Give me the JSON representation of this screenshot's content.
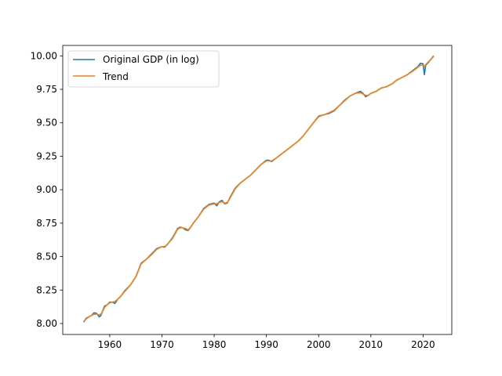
{
  "chart_data": {
    "type": "line",
    "title": "",
    "xlabel": "",
    "ylabel": "",
    "xlim": [
      1951,
      2025.5
    ],
    "ylim": [
      7.918,
      10.078
    ],
    "xticks": [
      1960,
      1970,
      1980,
      1990,
      2000,
      2010,
      2020
    ],
    "yticks": [
      8.0,
      8.25,
      8.5,
      8.75,
      9.0,
      9.25,
      9.5,
      9.75,
      10.0
    ],
    "xtick_labels": [
      "1960",
      "1970",
      "1980",
      "1990",
      "2000",
      "2010",
      "2020"
    ],
    "ytick_labels": [
      "8.00",
      "8.25",
      "8.50",
      "8.75",
      "9.00",
      "9.25",
      "9.50",
      "9.75",
      "10.00"
    ],
    "grid": false,
    "legend_position": "upper-left",
    "series": [
      {
        "name": "Original GDP (in log)",
        "color": "#1f77b4",
        "x": [
          1955.0,
          1955.5,
          1956.0,
          1956.5,
          1957.0,
          1957.5,
          1958.0,
          1958.3,
          1958.7,
          1959.0,
          1959.5,
          1960.0,
          1960.5,
          1961.0,
          1961.5,
          1962.0,
          1963.0,
          1964.0,
          1965.0,
          1966.0,
          1967.0,
          1968.0,
          1969.0,
          1970.0,
          1970.5,
          1971.0,
          1972.0,
          1973.0,
          1973.5,
          1974.0,
          1974.5,
          1975.0,
          1975.5,
          1976.0,
          1977.0,
          1978.0,
          1979.0,
          1980.0,
          1980.5,
          1981.0,
          1981.5,
          1982.0,
          1982.5,
          1983.0,
          1984.0,
          1985.0,
          1986.0,
          1987.0,
          1988.0,
          1989.0,
          1990.0,
          1990.5,
          1991.0,
          1992.0,
          1993.0,
          1994.0,
          1995.0,
          1996.0,
          1997.0,
          1998.0,
          1999.0,
          2000.0,
          2001.0,
          2002.0,
          2003.0,
          2004.0,
          2005.0,
          2006.0,
          2007.0,
          2008.0,
          2008.5,
          2009.0,
          2009.5,
          2010.0,
          2011.0,
          2012.0,
          2013.0,
          2014.0,
          2015.0,
          2016.0,
          2017.0,
          2018.0,
          2019.0,
          2019.5,
          2020.0,
          2020.25,
          2020.5,
          2021.0,
          2021.5,
          2022.0
        ],
        "y": [
          8.01,
          8.04,
          8.05,
          8.06,
          8.08,
          8.075,
          8.05,
          8.06,
          8.1,
          8.13,
          8.14,
          8.16,
          8.16,
          8.15,
          8.18,
          8.2,
          8.25,
          8.29,
          8.35,
          8.45,
          8.48,
          8.52,
          8.56,
          8.575,
          8.57,
          8.59,
          8.64,
          8.71,
          8.72,
          8.715,
          8.7,
          8.695,
          8.72,
          8.75,
          8.8,
          8.86,
          8.89,
          8.9,
          8.88,
          8.91,
          8.92,
          8.895,
          8.9,
          8.94,
          9.01,
          9.05,
          9.08,
          9.11,
          9.15,
          9.19,
          9.22,
          9.22,
          9.21,
          9.24,
          9.27,
          9.3,
          9.33,
          9.36,
          9.4,
          9.45,
          9.5,
          9.55,
          9.56,
          9.57,
          9.59,
          9.63,
          9.67,
          9.7,
          9.72,
          9.735,
          9.72,
          9.695,
          9.705,
          9.72,
          9.735,
          9.76,
          9.77,
          9.79,
          9.82,
          9.84,
          9.86,
          9.89,
          9.92,
          9.945,
          9.94,
          9.86,
          9.93,
          9.95,
          9.975,
          10.0
        ]
      },
      {
        "name": "Trend",
        "color": "#ff7f0e",
        "x": [
          1955.0,
          1955.5,
          1956.0,
          1956.5,
          1957.0,
          1957.5,
          1958.0,
          1958.3,
          1958.7,
          1959.0,
          1959.5,
          1960.0,
          1960.5,
          1961.0,
          1961.5,
          1962.0,
          1963.0,
          1964.0,
          1965.0,
          1966.0,
          1967.0,
          1968.0,
          1969.0,
          1970.0,
          1970.5,
          1971.0,
          1972.0,
          1973.0,
          1973.5,
          1974.0,
          1974.5,
          1975.0,
          1975.5,
          1976.0,
          1977.0,
          1978.0,
          1979.0,
          1980.0,
          1980.5,
          1981.0,
          1981.5,
          1982.0,
          1982.5,
          1983.0,
          1984.0,
          1985.0,
          1986.0,
          1987.0,
          1988.0,
          1989.0,
          1990.0,
          1990.5,
          1991.0,
          1992.0,
          1993.0,
          1994.0,
          1995.0,
          1996.0,
          1997.0,
          1998.0,
          1999.0,
          2000.0,
          2001.0,
          2002.0,
          2003.0,
          2004.0,
          2005.0,
          2006.0,
          2007.0,
          2008.0,
          2008.5,
          2009.0,
          2009.5,
          2010.0,
          2011.0,
          2012.0,
          2013.0,
          2014.0,
          2015.0,
          2016.0,
          2017.0,
          2018.0,
          2019.0,
          2019.5,
          2020.0,
          2020.25,
          2020.5,
          2021.0,
          2021.5,
          2022.0
        ],
        "y": [
          8.015,
          8.035,
          8.05,
          8.06,
          8.07,
          8.07,
          8.065,
          8.07,
          8.095,
          8.12,
          8.14,
          8.155,
          8.16,
          8.165,
          8.18,
          8.2,
          8.245,
          8.29,
          8.35,
          8.445,
          8.48,
          8.515,
          8.555,
          8.575,
          8.575,
          8.59,
          8.635,
          8.705,
          8.715,
          8.715,
          8.71,
          8.7,
          8.72,
          8.75,
          8.8,
          8.855,
          8.885,
          8.895,
          8.895,
          8.905,
          8.91,
          8.9,
          8.905,
          8.935,
          9.005,
          9.05,
          9.08,
          9.11,
          9.15,
          9.19,
          9.215,
          9.215,
          9.215,
          9.24,
          9.27,
          9.3,
          9.33,
          9.36,
          9.4,
          9.45,
          9.5,
          9.545,
          9.56,
          9.575,
          9.595,
          9.63,
          9.665,
          9.7,
          9.72,
          9.725,
          9.715,
          9.705,
          9.705,
          9.72,
          9.735,
          9.76,
          9.77,
          9.79,
          9.82,
          9.84,
          9.86,
          9.885,
          9.915,
          9.93,
          9.93,
          9.92,
          9.935,
          9.955,
          9.975,
          9.995
        ]
      }
    ]
  }
}
